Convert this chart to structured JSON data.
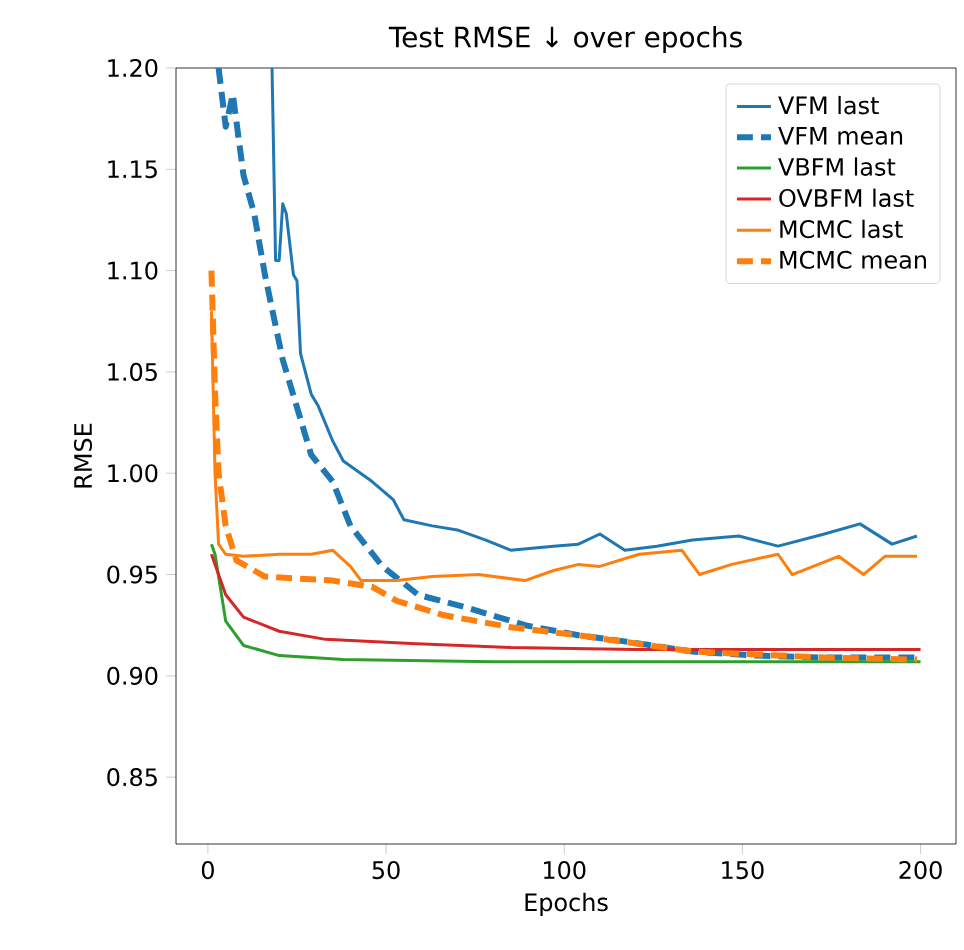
{
  "chart_data": {
    "type": "line",
    "title": "Test RMSE ↓ over epochs",
    "xlabel": "Epochs",
    "ylabel": "RMSE",
    "xlim": [
      -8.95,
      209.95
    ],
    "ylim": [
      0.817,
      1.2
    ],
    "xticks": [
      0,
      50,
      100,
      150,
      200
    ],
    "yticks": [
      {
        "value": 0.85,
        "label": "0.85"
      },
      {
        "value": 0.9,
        "label": "0.90"
      },
      {
        "value": 0.95,
        "label": "0.95"
      },
      {
        "value": 1.0,
        "label": "1.00"
      },
      {
        "value": 1.05,
        "label": "1.05"
      },
      {
        "value": 1.1,
        "label": "1.10"
      },
      {
        "value": 1.15,
        "label": "1.15"
      },
      {
        "value": 1.2,
        "label": "1.20"
      }
    ],
    "grid": false,
    "legend": "top right",
    "series": [
      {
        "name": "VFM last",
        "color": "#1f77b4",
        "line_style": "solid",
        "x": [
          18,
          19,
          20,
          21,
          22,
          24,
          25,
          26,
          29,
          31,
          35,
          38,
          46,
          52,
          55,
          63,
          70,
          78,
          85,
          97,
          104,
          110,
          117,
          126,
          136,
          149,
          160,
          173,
          183,
          192,
          199
        ],
        "values": [
          1.2,
          1.105,
          1.105,
          1.133,
          1.128,
          1.098,
          1.095,
          1.059,
          1.039,
          1.033,
          1.016,
          1.006,
          0.996,
          0.987,
          0.977,
          0.974,
          0.972,
          0.967,
          0.962,
          0.964,
          0.965,
          0.97,
          0.962,
          0.964,
          0.967,
          0.969,
          0.964,
          0.97,
          0.975,
          0.965,
          0.969
        ]
      },
      {
        "name": "VFM mean",
        "color": "#1f77b4",
        "line_style": "dashed",
        "x": [
          3,
          5,
          7,
          10,
          13,
          16,
          21,
          29,
          35,
          40,
          49,
          59,
          72,
          89,
          104,
          117,
          136,
          154,
          173,
          199
        ],
        "values": [
          1.2,
          1.171,
          1.187,
          1.147,
          1.128,
          1.098,
          1.056,
          1.009,
          0.996,
          0.974,
          0.954,
          0.94,
          0.934,
          0.925,
          0.92,
          0.917,
          0.912,
          0.91,
          0.909,
          0.909
        ]
      },
      {
        "name": "VBFM last",
        "color": "#2ca02c",
        "line_style": "solid",
        "x": [
          1,
          2,
          5,
          10,
          20,
          38,
          80,
          140,
          200
        ],
        "values": [
          0.965,
          0.96,
          0.927,
          0.915,
          0.91,
          0.908,
          0.907,
          0.907,
          0.907
        ]
      },
      {
        "name": "OVBFM last",
        "color": "#d62728",
        "line_style": "solid",
        "x": [
          1,
          5,
          10,
          20,
          33,
          57,
          85,
          120,
          200
        ],
        "values": [
          0.96,
          0.94,
          0.929,
          0.922,
          0.918,
          0.916,
          0.914,
          0.913,
          0.913
        ]
      },
      {
        "name": "MCMC last",
        "color": "#ff7f0e",
        "line_style": "solid",
        "x": [
          1,
          2,
          3,
          5,
          10,
          20,
          29,
          35,
          40,
          43,
          53,
          63,
          76,
          89,
          97,
          104,
          110,
          121,
          133,
          138,
          147,
          160,
          164,
          177,
          184,
          190,
          199
        ],
        "values": [
          1.08,
          1.0,
          0.965,
          0.96,
          0.959,
          0.96,
          0.96,
          0.962,
          0.954,
          0.947,
          0.947,
          0.949,
          0.95,
          0.947,
          0.952,
          0.955,
          0.954,
          0.96,
          0.962,
          0.95,
          0.955,
          0.96,
          0.95,
          0.959,
          0.95,
          0.959,
          0.959
        ]
      },
      {
        "name": "MCMC mean",
        "color": "#ff7f0e",
        "line_style": "dashed",
        "x": [
          1,
          2,
          3,
          5,
          8,
          16,
          35,
          46,
          53,
          66,
          85,
          104,
          136,
          173,
          199
        ],
        "values": [
          1.1,
          1.04,
          1.0,
          0.974,
          0.957,
          0.949,
          0.947,
          0.944,
          0.937,
          0.93,
          0.924,
          0.92,
          0.912,
          0.909,
          0.908
        ]
      }
    ]
  }
}
